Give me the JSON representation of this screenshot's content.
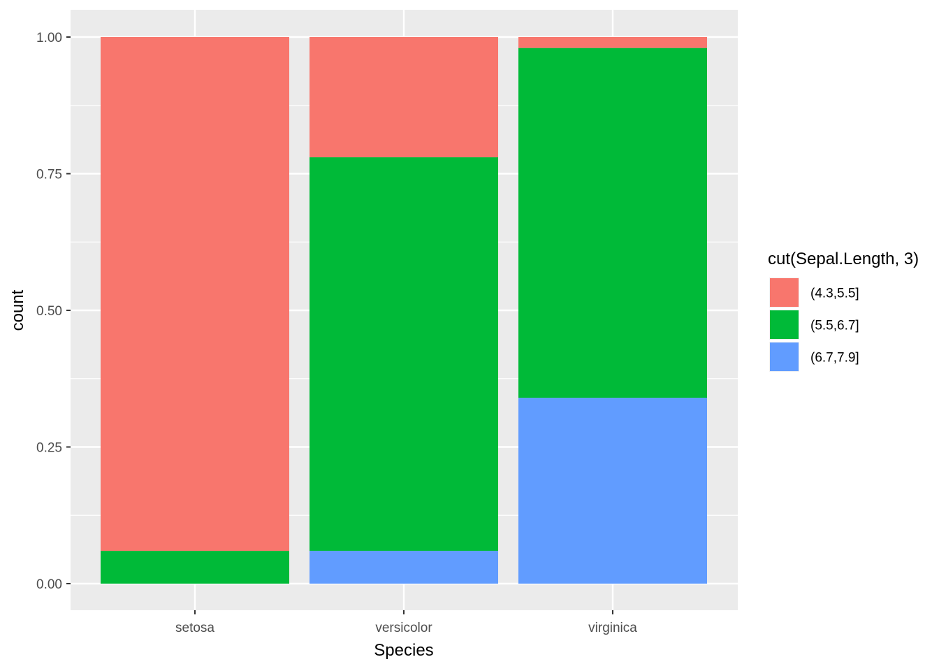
{
  "chart_data": {
    "type": "bar",
    "stacked": true,
    "position": "fill",
    "categories": [
      "setosa",
      "versicolor",
      "virginica"
    ],
    "series": [
      {
        "name": "(4.3,5.5]",
        "color": "#F8766D",
        "values": [
          0.94,
          0.22,
          0.02
        ]
      },
      {
        "name": "(5.5,6.7]",
        "color": "#00BA38",
        "values": [
          0.06,
          0.72,
          0.64
        ]
      },
      {
        "name": "(6.7,7.9]",
        "color": "#619CFF",
        "values": [
          0.0,
          0.06,
          0.34
        ]
      }
    ],
    "stack_order_bottom_to_top": [
      "(6.7,7.9]",
      "(5.5,6.7]",
      "(4.3,5.5]"
    ],
    "xlabel": "Species",
    "ylabel": "count",
    "ylim": [
      0,
      1
    ],
    "y_ticks": [
      0,
      0.25,
      0.5,
      0.75,
      1
    ],
    "y_tick_labels": [
      "0.00",
      "0.25",
      "0.50",
      "0.75",
      "1.00"
    ],
    "legend_title": "cut(Sepal.Length, 3)",
    "legend_position": "right",
    "grid": true,
    "panel_background": "#EBEBEB",
    "grid_color": "#FFFFFF"
  }
}
